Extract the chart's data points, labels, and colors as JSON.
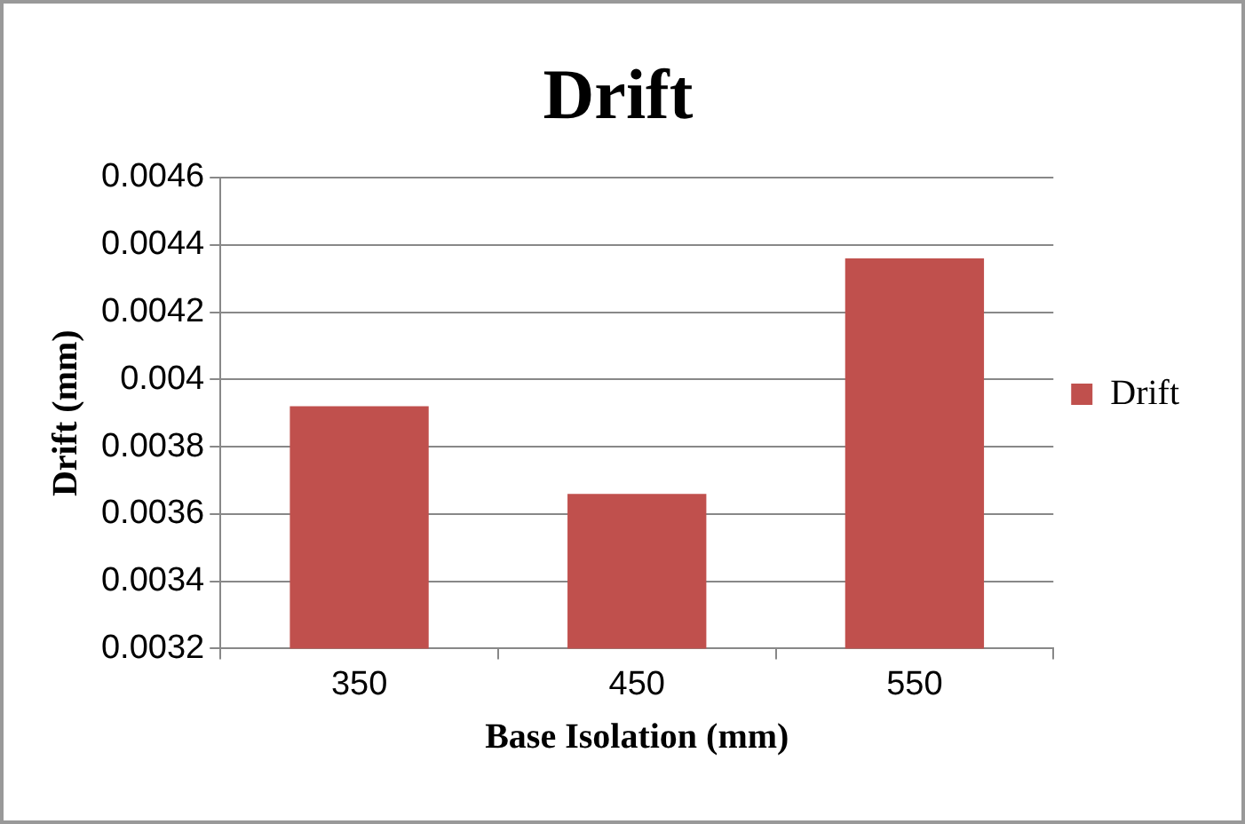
{
  "chart_data": {
    "type": "bar",
    "title": "Drift",
    "xlabel": "Base Isolation (mm)",
    "ylabel": "Drift (mm)",
    "categories": [
      "350",
      "450",
      "550"
    ],
    "series": [
      {
        "name": "Drift",
        "color": "#c0504d",
        "values": [
          0.00392,
          0.00366,
          0.00436
        ]
      }
    ],
    "ylim": [
      0.0032,
      0.0046
    ],
    "yticks": [
      0.0032,
      0.0034,
      0.0036,
      0.0038,
      0.004,
      0.0042,
      0.0044,
      0.0046
    ],
    "grid": "y",
    "legend": "right"
  }
}
